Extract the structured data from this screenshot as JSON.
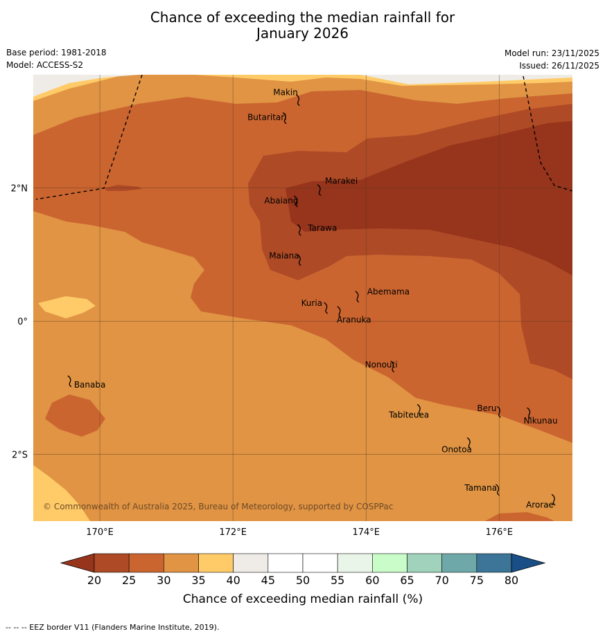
{
  "title": {
    "line1": "Chance of exceeding the median rainfall for",
    "line2": "January 2026"
  },
  "meta": {
    "base_period": "Base period: 1981-2018",
    "model": "Model: ACCESS-S2",
    "model_run": "Model run: 23/11/2025",
    "issued": "Issued: 26/11/2025"
  },
  "map": {
    "lon_range": [
      169,
      177.1
    ],
    "lat_range": [
      -3,
      3.7
    ],
    "lon_ticks": [
      {
        "value": 170,
        "label": "170°E"
      },
      {
        "value": 172,
        "label": "172°E"
      },
      {
        "value": 174,
        "label": "174°E"
      },
      {
        "value": 176,
        "label": "176°E"
      }
    ],
    "lat_ticks": [
      {
        "value": 2,
        "label": "2°N"
      },
      {
        "value": 0,
        "label": "0°"
      },
      {
        "value": -2,
        "label": "2°S"
      }
    ],
    "islands": [
      {
        "name": "Makin",
        "lon": 172.98,
        "lat": 3.35
      },
      {
        "name": "Butaritari",
        "lon": 172.78,
        "lat": 3.08
      },
      {
        "name": "Marakei",
        "lon": 173.3,
        "lat": 2.0
      },
      {
        "name": "Abaiang",
        "lon": 172.95,
        "lat": 1.83
      },
      {
        "name": "Tarawa",
        "lon": 173.0,
        "lat": 1.4
      },
      {
        "name": "Maiana",
        "lon": 173.0,
        "lat": 0.95
      },
      {
        "name": "Abemama",
        "lon": 173.87,
        "lat": 0.4
      },
      {
        "name": "Kuria",
        "lon": 173.4,
        "lat": 0.23
      },
      {
        "name": "Aranuka",
        "lon": 173.6,
        "lat": 0.17
      },
      {
        "name": "Nonouti",
        "lon": 174.4,
        "lat": -0.65
      },
      {
        "name": "Banaba",
        "lon": 169.55,
        "lat": -0.87
      },
      {
        "name": "Tabiteuea",
        "lon": 174.8,
        "lat": -1.3
      },
      {
        "name": "Beru",
        "lon": 176.0,
        "lat": -1.33
      },
      {
        "name": "Nikunau",
        "lon": 176.45,
        "lat": -1.35
      },
      {
        "name": "Onotoa",
        "lon": 175.55,
        "lat": -1.8
      },
      {
        "name": "Tamana",
        "lon": 175.98,
        "lat": -2.5
      },
      {
        "name": "Arorae",
        "lon": 176.82,
        "lat": -2.65
      }
    ],
    "copyright": "© Commonwealth of Australia 2025, Bureau of Meteorology, supported by COSPPac"
  },
  "colorbar": {
    "ticks": [
      "20",
      "25",
      "30",
      "35",
      "40",
      "45",
      "50",
      "55",
      "60",
      "65",
      "70",
      "75",
      "80"
    ],
    "colors": [
      "#ae4a26",
      "#cb6530",
      "#e09444",
      "#ffcb68",
      "#efebe6",
      "#ffffff",
      "#ffffff",
      "#eaf5e9",
      "#c9fcc9",
      "#a0d2bc",
      "#6fa8a8",
      "#3c7598"
    ],
    "low_extend_color": "#96341c",
    "high_extend_color": "#194e86",
    "label": "Chance of exceeding median rainfall (%)"
  },
  "footer": "-- -- -- EEZ border V11 (Flanders Marine Institute, 2019)."
}
